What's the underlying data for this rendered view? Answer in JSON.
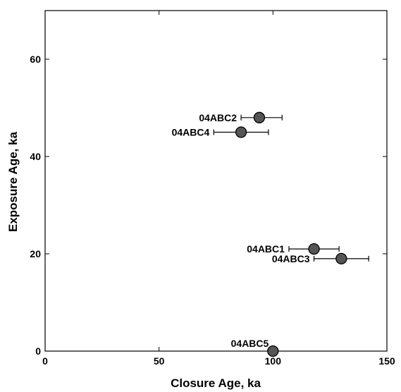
{
  "chart_data": {
    "type": "scatter",
    "title": "",
    "xlabel": "Closure Age, ka",
    "ylabel": "Exposure Age, ka",
    "xlim": [
      0,
      150
    ],
    "ylim": [
      0,
      70
    ],
    "xticks": [
      0,
      50,
      100,
      150
    ],
    "yticks": [
      0,
      20,
      40,
      60
    ],
    "grid": false,
    "legend": "none",
    "marker_color": "#555555",
    "points": [
      {
        "label": "04ABC2",
        "x": 94,
        "y": 48,
        "x_err_low": 8,
        "x_err_high": 10
      },
      {
        "label": "04ABC4",
        "x": 86,
        "y": 45,
        "x_err_low": 12,
        "x_err_high": 12
      },
      {
        "label": "04ABC1",
        "x": 118,
        "y": 21,
        "x_err_low": 11,
        "x_err_high": 11
      },
      {
        "label": "04ABC3",
        "x": 130,
        "y": 19,
        "x_err_low": 12,
        "x_err_high": 12
      },
      {
        "label": "04ABC5",
        "x": 100,
        "y": 0,
        "x_err_low": 0,
        "x_err_high": 0
      }
    ]
  }
}
